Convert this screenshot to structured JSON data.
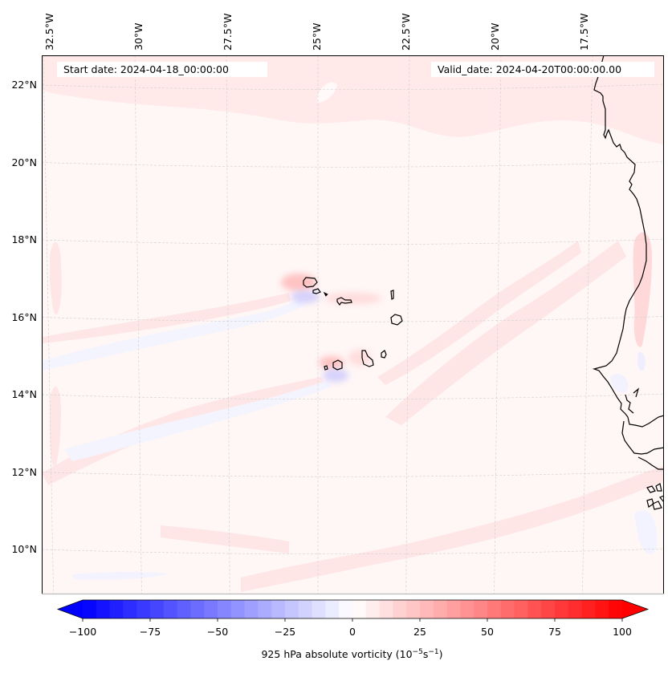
{
  "map": {
    "region": "Cape Verde Islands and West African coast (Senegal / Gambia / Guinea-Bissau)",
    "variable": "925 hPa absolute vorticity",
    "start_date_text": "Start date: 2024-04-18_00:00:00",
    "valid_date_text": "Valid_date: 2024-04-20T00:00:00.00",
    "lon_ticks": [
      {
        "value": -32.5,
        "label": "32.5°W"
      },
      {
        "value": -30.0,
        "label": "30°W"
      },
      {
        "value": -27.5,
        "label": "27.5°W"
      },
      {
        "value": -25.0,
        "label": "25°W"
      },
      {
        "value": -22.5,
        "label": "22.5°W"
      },
      {
        "value": -20.0,
        "label": "20°W"
      },
      {
        "value": -17.5,
        "label": "17.5°W"
      }
    ],
    "lat_ticks": [
      {
        "value": 22,
        "label": "22°N"
      },
      {
        "value": 20,
        "label": "20°N"
      },
      {
        "value": 18,
        "label": "18°N"
      },
      {
        "value": 16,
        "label": "16°N"
      },
      {
        "value": 14,
        "label": "14°N"
      },
      {
        "value": 12,
        "label": "12°N"
      },
      {
        "value": 10,
        "label": "10°N"
      }
    ],
    "extent": {
      "lon_min": -32.8,
      "lon_max": -15.2,
      "lat_min": 8.8,
      "lat_max": 22.8
    },
    "colors": {
      "background": "#fff6f6",
      "weak_positive": "#ffe6e6",
      "moderate_positive": "#ffcccc",
      "weak_negative": "#f3f3ff",
      "moderate_negative": "#dcdcff",
      "coastline": "#000000",
      "gridline": "#cccccc"
    },
    "features": [
      {
        "name": "Santo Antão vorticity dipole",
        "lon": -25.2,
        "lat": 17.0,
        "positive": 30,
        "negative": -20
      },
      {
        "name": "Fogo/Brava vorticity dipole",
        "lon": -24.4,
        "lat": 14.9,
        "positive": 30,
        "negative": -20
      }
    ]
  },
  "colorbar": {
    "cmap": "bwr",
    "min": -100,
    "max": 100,
    "levels": 40,
    "extend": "both",
    "ticks": [
      -100,
      -75,
      -50,
      -25,
      0,
      25,
      50,
      75,
      100
    ],
    "tick_labels": [
      "−100",
      "−75",
      "−50",
      "−25",
      "0",
      "25",
      "50",
      "75",
      "100"
    ],
    "label_main": "925 hPa absolute vorticity (10",
    "label_exp1": "−5",
    "label_mid": "s",
    "label_exp2": "−1",
    "label_end": ")"
  }
}
